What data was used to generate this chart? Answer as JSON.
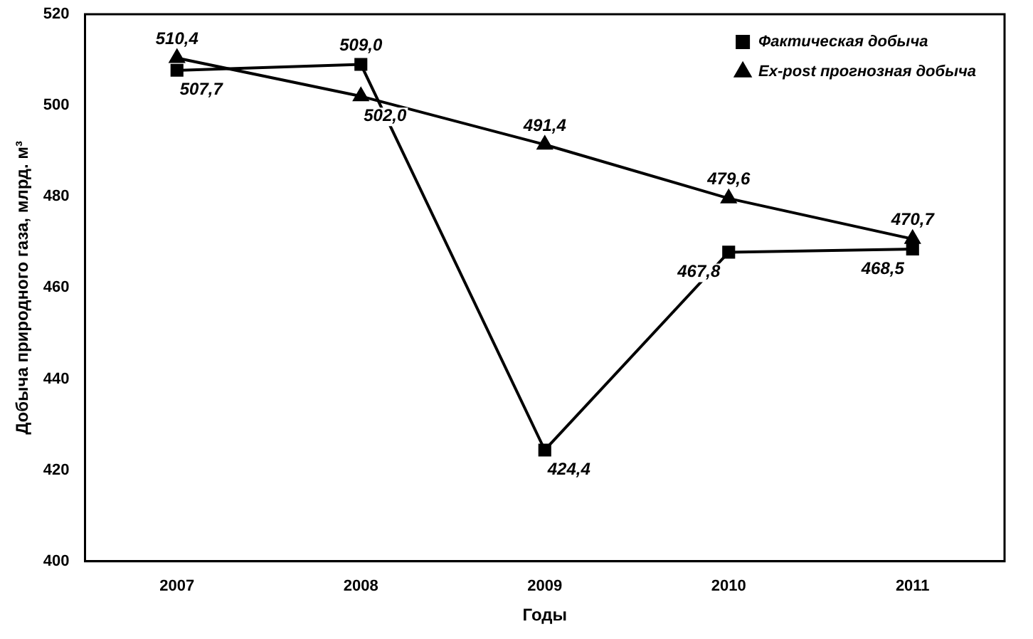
{
  "chart_data": {
    "type": "line",
    "xlabel": "Годы",
    "ylabel": "Добыча природного газа, млрд. м³",
    "categories": [
      "2007",
      "2008",
      "2009",
      "2010",
      "2011"
    ],
    "series": [
      {
        "name": "Фактическая добыча",
        "color": "#000000",
        "marker": "square",
        "values": [
          507.7,
          509.0,
          424.4,
          467.8,
          468.5
        ],
        "value_labels": [
          "507,7",
          "509,0",
          "424,4",
          "467,8",
          "468,5"
        ]
      },
      {
        "name": "Ex-post прогнозная добыча",
        "color": "#000000",
        "marker": "triangle",
        "values": [
          510.4,
          502.0,
          491.4,
          479.6,
          470.7
        ],
        "value_labels": [
          "510,4",
          "502,0",
          "491,4",
          "479,6",
          "470,7"
        ]
      }
    ],
    "ylim": [
      400,
      520
    ],
    "yticks": [
      400,
      420,
      440,
      460,
      480,
      500,
      520
    ],
    "grid": false,
    "legend": "top right"
  }
}
